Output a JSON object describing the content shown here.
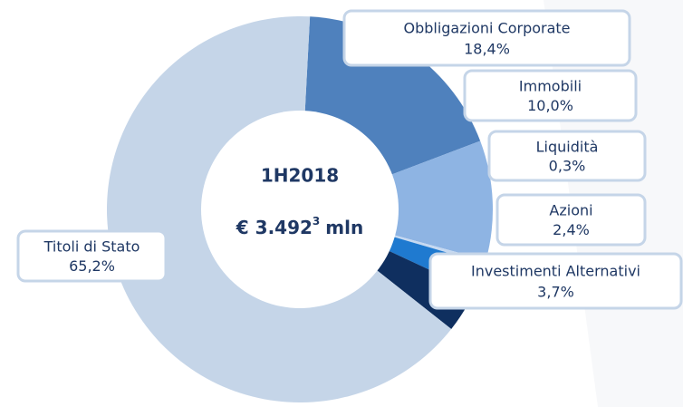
{
  "chart_data": {
    "type": "pie",
    "center_label": "1H2018",
    "total": "€ 3.492",
    "footnote": "3",
    "unit": "mln",
    "categories": [
      "Obbligazioni Corporate",
      "Immobili",
      "Liquidità",
      "Azioni",
      "Investimenti Alternativi",
      "Titoli di Stato"
    ],
    "values": [
      18.4,
      10.0,
      0.3,
      2.4,
      3.7,
      65.2
    ],
    "value_labels": [
      "18,4%",
      "10,0%",
      "0,3%",
      "2,4%",
      "3,7%",
      "65,2%"
    ],
    "colors": [
      "#4f81bd",
      "#8eb4e3",
      "#c6d9f1",
      "#1f7ad0",
      "#0f2f5f",
      "#c5d5e8"
    ]
  }
}
